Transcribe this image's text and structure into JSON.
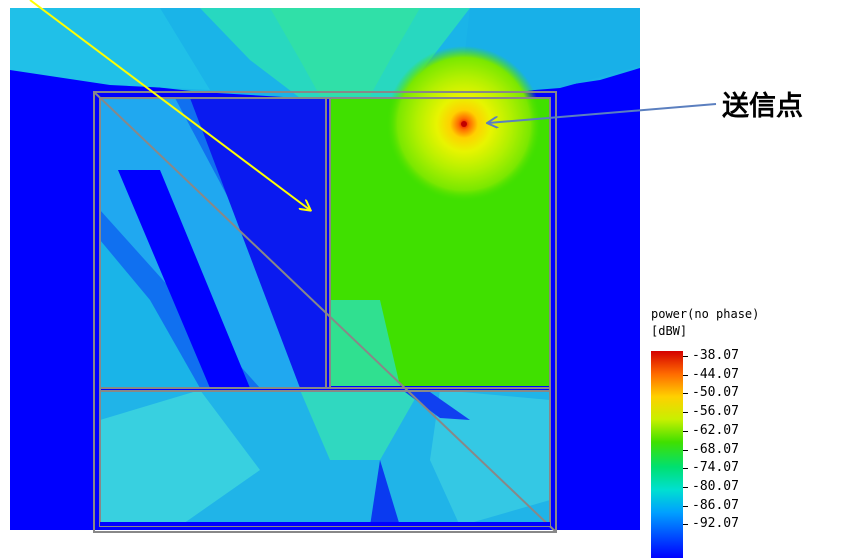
{
  "annotation": {
    "label": "送信点"
  },
  "legend": {
    "title_line1": "power(no phase)",
    "title_line2": "[dBW]",
    "values": [
      "-38.07",
      "-44.07",
      "-50.07",
      "-56.07",
      "-62.07",
      "-68.07",
      "-74.07",
      "-80.07",
      "-86.07",
      "-92.07"
    ],
    "colors": [
      "#d40000",
      "#ff6a00",
      "#ffd000",
      "#c8f000",
      "#40e000",
      "#00e070",
      "#00e0d0",
      "#00a0ff",
      "#0050ff",
      "#0000ff"
    ]
  },
  "map_colors": {
    "background_low": "#0000ff",
    "blue_region": "#0a1af0",
    "cyan_region": "#1ab4e8",
    "light_cyan": "#30cce0",
    "green_region": "#40e000",
    "teal_region": "#1ee0a0",
    "yellow": "#f0f000",
    "orange": "#ff8c00",
    "red": "#e00000",
    "wall": "#888888",
    "arrow_yellow": "#ffff00",
    "arrow_blue": "#5b7fbf"
  }
}
